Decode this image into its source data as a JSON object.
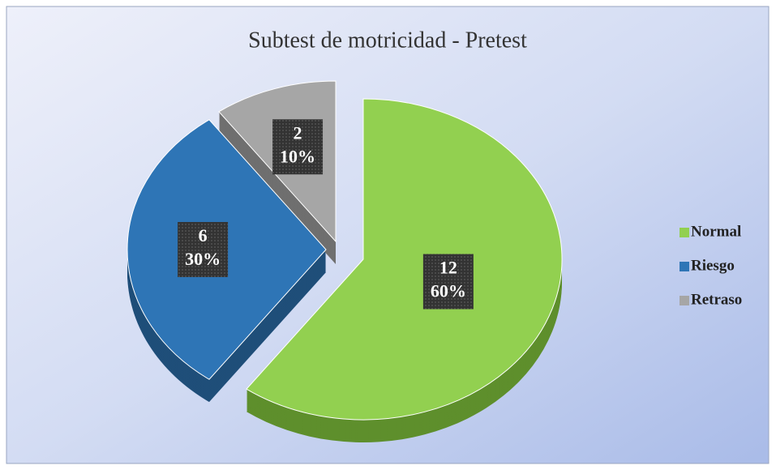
{
  "chart_data": {
    "type": "pie",
    "title": "Subtest de motricidad - Pretest",
    "categories": [
      "Normal",
      "Riesgo",
      "Retraso"
    ],
    "values": [
      60,
      30,
      10
    ],
    "value_labels": [
      "60%",
      "30%",
      "10%"
    ],
    "counts": [
      12,
      6,
      2
    ],
    "colors": [
      "#92d050",
      "#2e75b6",
      "#a6a6a6"
    ],
    "side_colors": [
      "#5e8f2c",
      "#1f4e79",
      "#6f6f6f"
    ],
    "legend": "right"
  }
}
